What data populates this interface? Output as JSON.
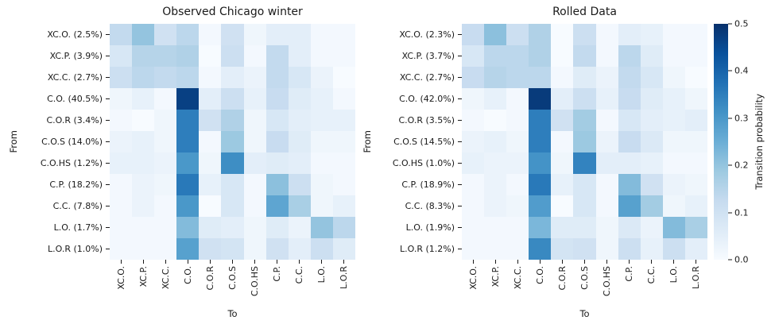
{
  "colorbar": {
    "label": "Transition probability",
    "ticks": [
      "0.5",
      "0.4",
      "0.3",
      "0.2",
      "0.1",
      "0.0"
    ],
    "vmin": 0.0,
    "vmax": 0.5,
    "colormap": "Blues",
    "colormap_stops": [
      [
        247,
        251,
        255
      ],
      [
        222,
        235,
        247
      ],
      [
        198,
        219,
        239
      ],
      [
        158,
        202,
        225
      ],
      [
        107,
        174,
        214
      ],
      [
        66,
        146,
        198
      ],
      [
        33,
        113,
        181
      ],
      [
        8,
        81,
        156
      ],
      [
        8,
        48,
        107
      ]
    ]
  },
  "chart_data": [
    {
      "type": "heatmap",
      "title": "Observed Chicago winter",
      "xlabel": "To",
      "ylabel": "From",
      "vmin": 0.0,
      "vmax": 0.5,
      "legend_position": "shared-colorbar-right",
      "grid": false,
      "x_ticks": [
        "XC.O.",
        "XC.P.",
        "XC.C.",
        "C.O.",
        "C.O.R",
        "C.O.S",
        "C.O.HS",
        "C.P.",
        "C.C.",
        "L.O.",
        "L.O.R"
      ],
      "y_ticks": [
        "XC.O. (2.5%)",
        "XC.P. (3.9%)",
        "XC.C. (2.7%)",
        "C.O. (40.5%)",
        "C.O.R (3.4%)",
        "C.O.S (14.0%)",
        "C.O.HS (1.2%)",
        "C.P. (18.2%)",
        "C.C. (7.8%)",
        "L.O. (1.7%)",
        "L.O.R (1.0%)"
      ],
      "values": [
        [
          0.13,
          0.2,
          0.1,
          0.14,
          0.01,
          0.1,
          0.02,
          0.05,
          0.05,
          0.01,
          0.01
        ],
        [
          0.08,
          0.15,
          0.15,
          0.16,
          0.0,
          0.11,
          0.01,
          0.13,
          0.05,
          0.01,
          0.01
        ],
        [
          0.11,
          0.14,
          0.13,
          0.14,
          0.01,
          0.05,
          0.03,
          0.13,
          0.08,
          0.03,
          0.0
        ],
        [
          0.02,
          0.04,
          0.01,
          0.47,
          0.05,
          0.11,
          0.04,
          0.12,
          0.06,
          0.04,
          0.01
        ],
        [
          0.01,
          0.0,
          0.02,
          0.35,
          0.1,
          0.16,
          0.02,
          0.08,
          0.05,
          0.04,
          0.04
        ],
        [
          0.03,
          0.04,
          0.02,
          0.35,
          0.01,
          0.19,
          0.02,
          0.12,
          0.06,
          0.02,
          0.02
        ],
        [
          0.04,
          0.04,
          0.03,
          0.3,
          0.02,
          0.32,
          0.05,
          0.06,
          0.05,
          0.01,
          0.01
        ],
        [
          0.01,
          0.03,
          0.02,
          0.36,
          0.04,
          0.08,
          0.01,
          0.21,
          0.11,
          0.02,
          0.01
        ],
        [
          0.01,
          0.03,
          0.01,
          0.3,
          0.0,
          0.08,
          0.01,
          0.27,
          0.17,
          0.02,
          0.04
        ],
        [
          0.01,
          0.01,
          0.01,
          0.22,
          0.06,
          0.05,
          0.02,
          0.06,
          0.03,
          0.2,
          0.14
        ],
        [
          0.01,
          0.01,
          0.01,
          0.28,
          0.1,
          0.09,
          0.02,
          0.1,
          0.05,
          0.11,
          0.06
        ]
      ]
    },
    {
      "type": "heatmap",
      "title": "Rolled Data",
      "xlabel": "To",
      "ylabel": "From",
      "vmin": 0.0,
      "vmax": 0.5,
      "legend_position": "shared-colorbar-right",
      "grid": false,
      "x_ticks": [
        "XC.O.",
        "XC.P.",
        "XC.C.",
        "C.O.",
        "C.O.R",
        "C.O.S",
        "C.O.HS",
        "C.P.",
        "C.C.",
        "L.O.",
        "L.O.R"
      ],
      "y_ticks": [
        "XC.O. (2.3%)",
        "XC.P. (3.7%)",
        "XC.C. (2.7%)",
        "C.O. (42.0%)",
        "C.O.R (3.5%)",
        "C.O.S (14.5%)",
        "C.O.HS (1.0%)",
        "C.P. (18.9%)",
        "C.C. (8.3%)",
        "L.O. (1.9%)",
        "L.O.R (1.2%)"
      ],
      "values": [
        [
          0.12,
          0.21,
          0.11,
          0.16,
          0.0,
          0.11,
          0.01,
          0.05,
          0.04,
          0.01,
          0.01
        ],
        [
          0.08,
          0.14,
          0.14,
          0.16,
          0.0,
          0.13,
          0.01,
          0.14,
          0.06,
          0.01,
          0.01
        ],
        [
          0.12,
          0.15,
          0.14,
          0.14,
          0.01,
          0.06,
          0.03,
          0.13,
          0.08,
          0.02,
          0.0
        ],
        [
          0.02,
          0.04,
          0.01,
          0.48,
          0.05,
          0.11,
          0.04,
          0.12,
          0.06,
          0.04,
          0.02
        ],
        [
          0.01,
          0.0,
          0.01,
          0.35,
          0.1,
          0.18,
          0.01,
          0.08,
          0.05,
          0.04,
          0.05
        ],
        [
          0.03,
          0.04,
          0.02,
          0.35,
          0.01,
          0.19,
          0.03,
          0.12,
          0.07,
          0.02,
          0.02
        ],
        [
          0.04,
          0.03,
          0.03,
          0.31,
          0.02,
          0.34,
          0.05,
          0.05,
          0.04,
          0.01,
          0.01
        ],
        [
          0.01,
          0.03,
          0.01,
          0.36,
          0.04,
          0.08,
          0.01,
          0.22,
          0.1,
          0.03,
          0.02
        ],
        [
          0.01,
          0.03,
          0.02,
          0.29,
          0.0,
          0.08,
          0.01,
          0.28,
          0.18,
          0.02,
          0.04
        ],
        [
          0.01,
          0.01,
          0.01,
          0.23,
          0.06,
          0.06,
          0.02,
          0.07,
          0.03,
          0.22,
          0.17
        ],
        [
          0.01,
          0.01,
          0.01,
          0.33,
          0.09,
          0.1,
          0.02,
          0.11,
          0.04,
          0.11,
          0.05
        ]
      ]
    }
  ]
}
